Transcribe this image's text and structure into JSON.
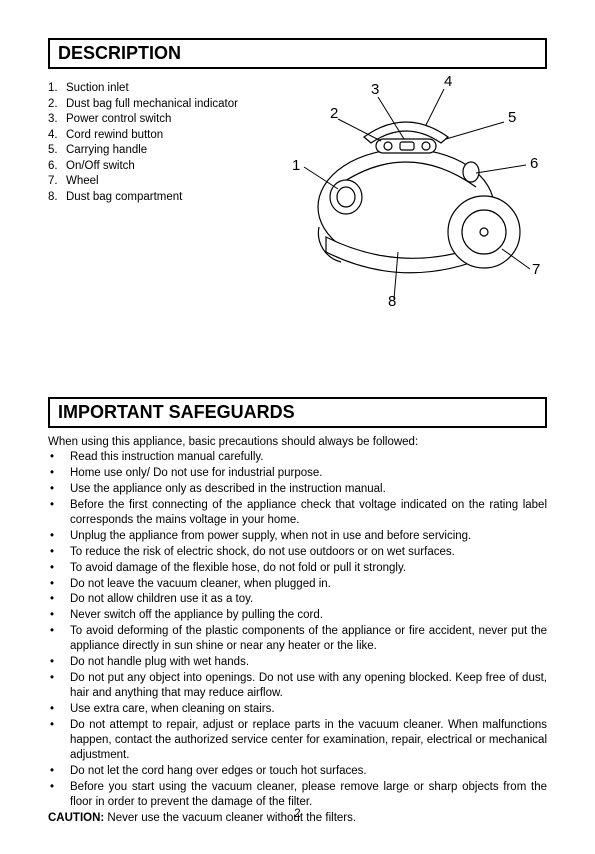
{
  "description": {
    "header": "DESCRIPTION",
    "items": [
      "Suction inlet",
      "Dust bag full mechanical indicator",
      "Power control switch",
      "Cord rewind button",
      "Carrying handle",
      "On/Off switch",
      "Wheel",
      "Dust bag compartment"
    ]
  },
  "diagram": {
    "callouts": [
      "1",
      "2",
      "3",
      "4",
      "5",
      "6",
      "7",
      "8"
    ],
    "stroke": "#000000",
    "stroke_width": 1.2,
    "fill": "#ffffff",
    "callout_fontsize": 15
  },
  "safeguards": {
    "header": "IMPORTANT SAFEGUARDS",
    "intro": "When using this appliance, basic precautions should always be followed:",
    "items": [
      "Read this instruction manual carefully.",
      "Home use only/ Do not use for industrial purpose.",
      "Use the appliance only as described in the instruction manual.",
      "Before the first connecting of the appliance check that voltage indicated on the rating label corresponds the mains voltage in your home.",
      "Unplug the appliance from power supply, when not in use and before servicing.",
      "To reduce the risk of electric shock, do not use outdoors or on wet surfaces.",
      "To avoid damage of the flexible hose, do not fold or pull it strongly.",
      "Do not leave the vacuum cleaner, when plugged in.",
      "Do not allow children use it as a toy.",
      "Never switch off the appliance by pulling the cord.",
      "To avoid deforming of the plastic components of the appliance or fire accident, never put the appliance directly in sun shine or near any heater or the like.",
      "Do not handle plug with wet hands.",
      "Do not put any object into openings. Do not use with any opening blocked. Keep free of dust, hair and anything that may reduce airflow.",
      "Use extra care, when cleaning on stairs.",
      "Do not attempt to repair, adjust or replace parts in the vacuum cleaner. When malfunctions happen, contact the authorized service center for examination, repair, electrical or mechanical adjustment.",
      "Do not let the cord hang over edges or touch hot surfaces.",
      "Before you start using the vacuum cleaner, please remove large or sharp objects from the floor in order to prevent the damage of the filter."
    ],
    "caution_label": "CAUTION:",
    "caution_text": " Never use the vacuum cleaner without the filters."
  },
  "page_number": "2"
}
